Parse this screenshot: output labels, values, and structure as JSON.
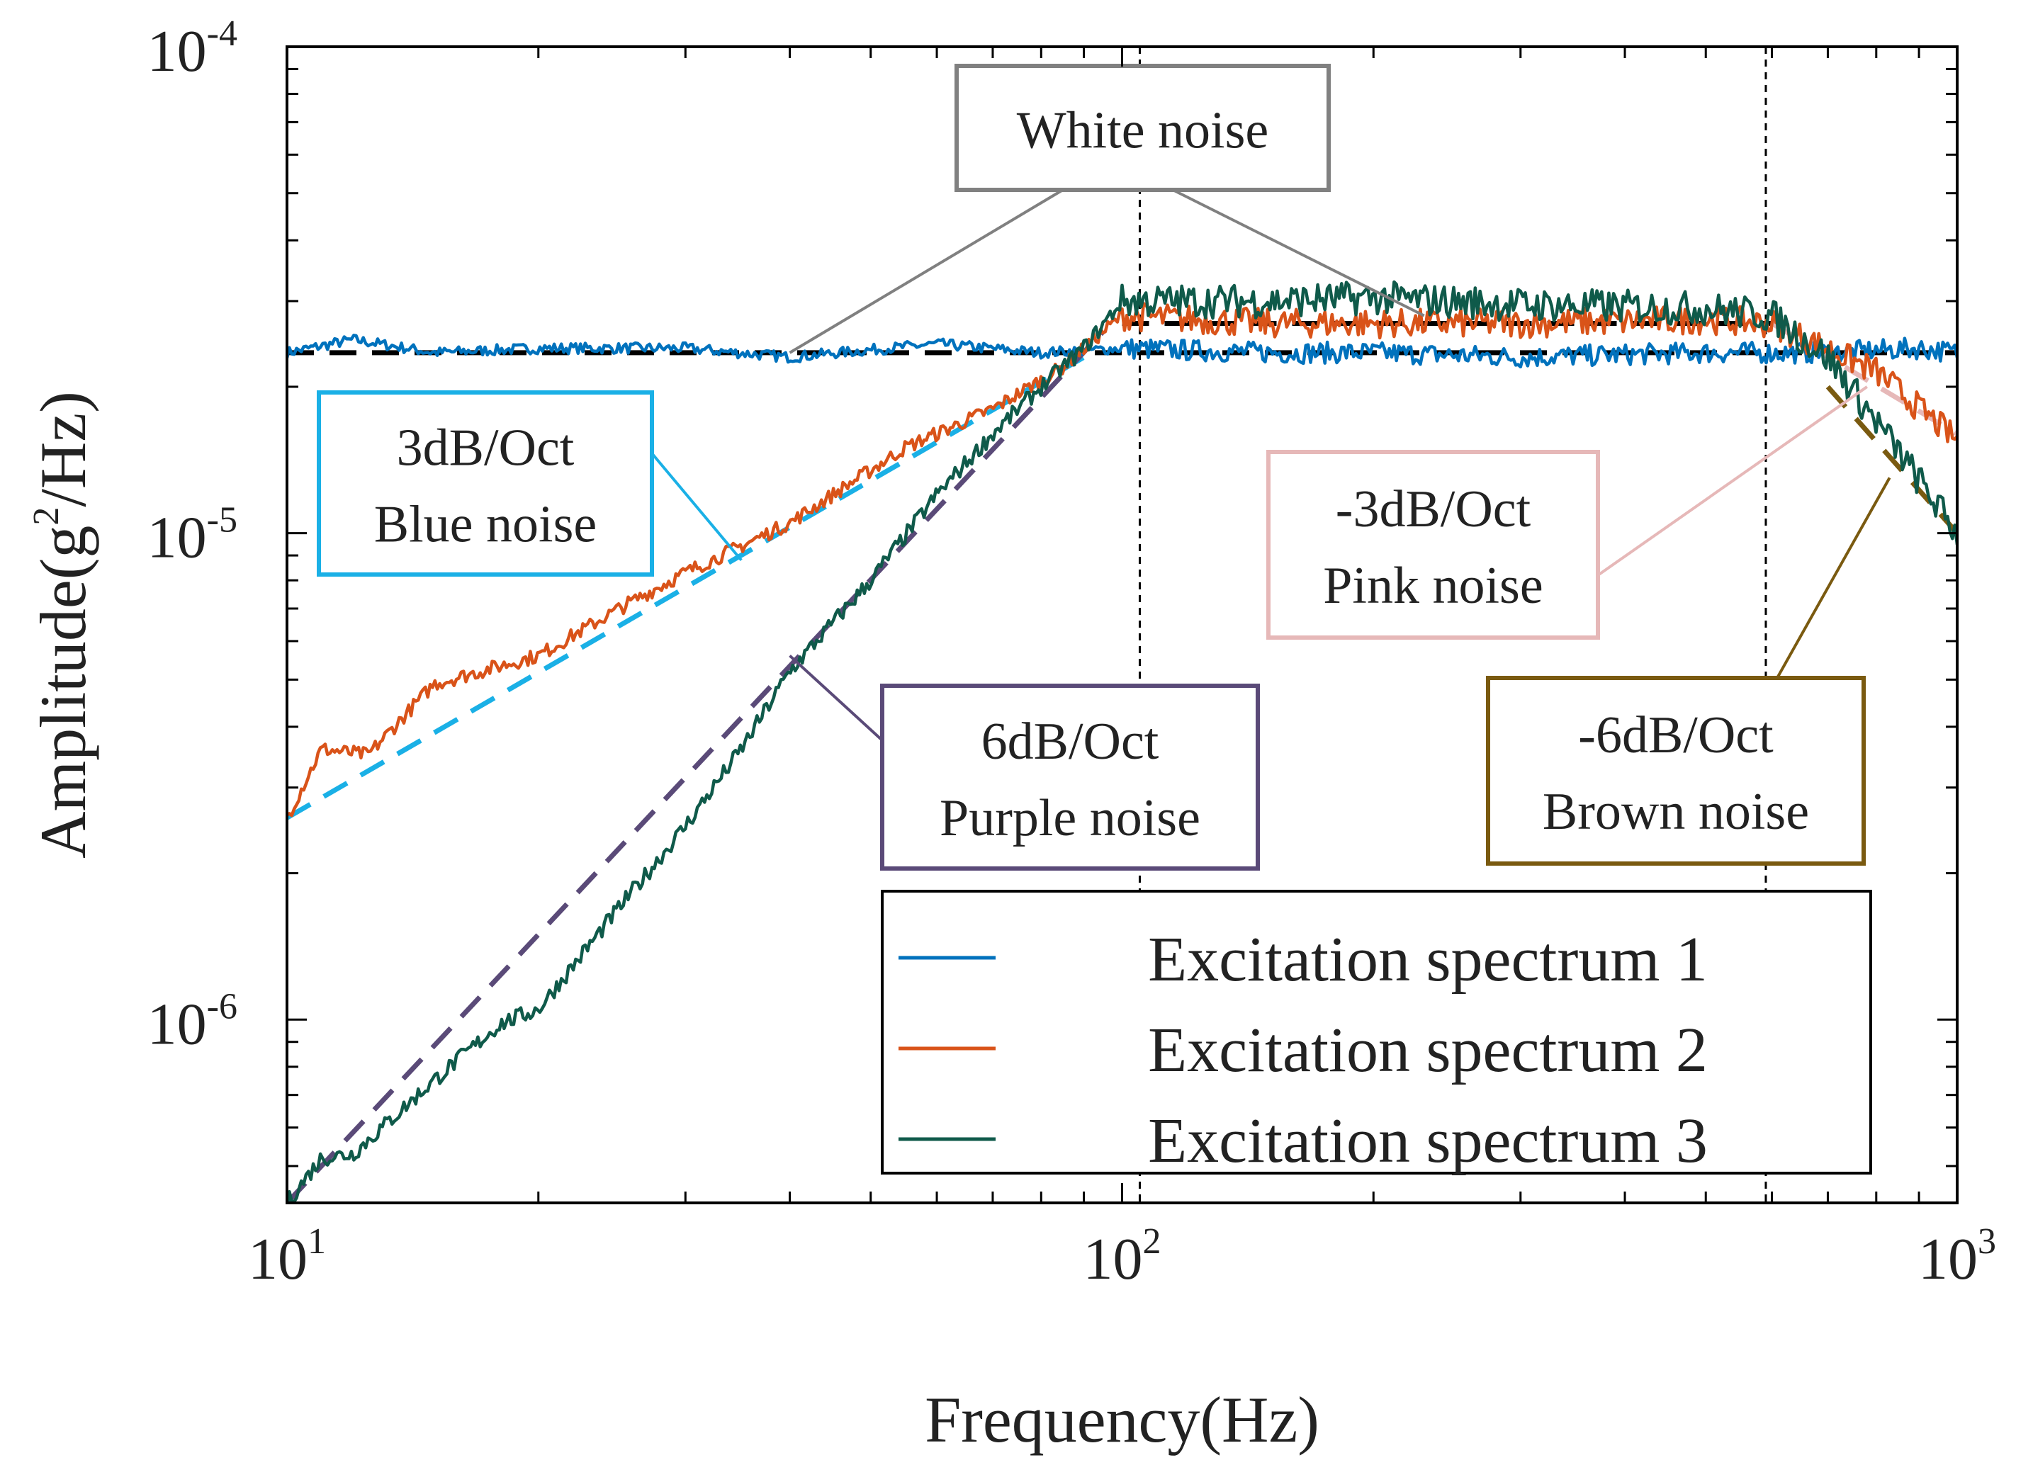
{
  "chart_data": {
    "type": "line",
    "xscale": "log",
    "yscale": "log",
    "xlim": [
      10,
      1000
    ],
    "ylim": [
      4.2e-07,
      0.0001
    ],
    "xlabel": "Frequency(Hz)",
    "ylabel": "Amplitude(g^2/Hz)",
    "ylabel_parts": {
      "main": "Amplitude(g",
      "exp": "2",
      "tail": "/Hz)"
    },
    "x_ticks": [
      {
        "base": "10",
        "exp": "1"
      },
      {
        "base": "10",
        "exp": "2"
      },
      {
        "base": "10",
        "exp": "3"
      }
    ],
    "y_ticks": [
      {
        "value": 1e-06,
        "base": "10",
        "exp": "-6"
      },
      {
        "value": 1e-05,
        "base": "10",
        "exp": "-5"
      },
      {
        "value": 0.0001,
        "base": "10",
        "exp": "-4"
      }
    ],
    "grid": false,
    "legend_position": "bottom-right",
    "series": [
      {
        "name": "Excitation spectrum 1",
        "color": "#0072BD",
        "points": [
          [
            10,
            2.35e-05
          ],
          [
            12,
            2.5e-05
          ],
          [
            15,
            2.35e-05
          ],
          [
            20,
            2.4e-05
          ],
          [
            30,
            2.4e-05
          ],
          [
            40,
            2.3e-05
          ],
          [
            60,
            2.45e-05
          ],
          [
            80,
            2.35e-05
          ],
          [
            100,
            2.4e-05
          ],
          [
            150,
            2.35e-05
          ],
          [
            200,
            2.35e-05
          ],
          [
            300,
            2.3e-05
          ],
          [
            500,
            2.35e-05
          ],
          [
            700,
            2.35e-05
          ],
          [
            900,
            2.4e-05
          ],
          [
            1000,
            2.35e-05
          ]
        ]
      },
      {
        "name": "Excitation spectrum 2",
        "color": "#D95319",
        "points": [
          [
            10,
            2.6e-06
          ],
          [
            11,
            3.6e-06
          ],
          [
            12.5,
            3.5e-06
          ],
          [
            15,
            4.9e-06
          ],
          [
            20,
            5.6e-06
          ],
          [
            25,
            7e-06
          ],
          [
            30,
            8.3e-06
          ],
          [
            40,
            1.05e-05
          ],
          [
            55,
            1.5e-05
          ],
          [
            70,
            1.8e-05
          ],
          [
            85,
            2.2e-05
          ],
          [
            95,
            2.6e-05
          ],
          [
            100,
            2.8e-05
          ],
          [
            150,
            2.7e-05
          ],
          [
            300,
            2.7e-05
          ],
          [
            500,
            2.75e-05
          ],
          [
            600,
            2.7e-05
          ],
          [
            800,
            2.15e-05
          ],
          [
            1000,
            1.55e-05
          ]
        ]
      },
      {
        "name": "Excitation spectrum 3",
        "color": "#0F5A4A",
        "points": [
          [
            10,
            4.2e-07
          ],
          [
            11,
            5.2e-07
          ],
          [
            12,
            5.3e-07
          ],
          [
            15,
            7.5e-07
          ],
          [
            18,
            9.8e-07
          ],
          [
            20,
            1.05e-06
          ],
          [
            25,
            1.7e-06
          ],
          [
            30,
            2.5e-06
          ],
          [
            35,
            3.6e-06
          ],
          [
            40,
            5.2e-06
          ],
          [
            50,
            8e-06
          ],
          [
            60,
            1.2e-05
          ],
          [
            70,
            1.6e-05
          ],
          [
            80,
            2e-05
          ],
          [
            90,
            2.4e-05
          ],
          [
            100,
            3e-05
          ],
          [
            150,
            3e-05
          ],
          [
            200,
            3.05e-05
          ],
          [
            300,
            2.95e-05
          ],
          [
            500,
            2.9e-05
          ],
          [
            600,
            2.8e-05
          ],
          [
            700,
            2.3e-05
          ],
          [
            800,
            1.7e-05
          ],
          [
            1000,
            1e-05
          ]
        ]
      }
    ],
    "references": [
      {
        "label": "White noise",
        "color": "#000000",
        "points": [
          [
            10,
            2.35e-05
          ],
          [
            1000,
            2.35e-05
          ]
        ]
      },
      {
        "label": "White noise",
        "color": "#000000",
        "points": [
          [
            100,
            2.7e-05
          ],
          [
            600,
            2.7e-05
          ]
        ]
      },
      {
        "label": "Blue noise",
        "color": "#1AB0E6",
        "points": [
          [
            10,
            2.6e-06
          ],
          [
            90,
            2.3e-05
          ]
        ]
      },
      {
        "label": "Purple noise",
        "color": "#5A4A78",
        "points": [
          [
            10,
            4.2e-07
          ],
          [
            95,
            2.6e-05
          ]
        ]
      },
      {
        "label": "Pink noise",
        "color": "#E6B8B8",
        "points": [
          [
            600,
            2.7e-05
          ],
          [
            1000,
            1.6e-05
          ]
        ]
      },
      {
        "label": "Brown noise",
        "color": "#7A5A10",
        "points": [
          [
            700,
            2e-05
          ],
          [
            1000,
            1e-05
          ]
        ]
      }
    ],
    "vlines": [
      105,
      590
    ],
    "annotations": [
      {
        "id": "white",
        "lines": [
          "White noise"
        ],
        "color": "#808080",
        "target": [
          [
            40,
            2.35e-05
          ],
          [
            230,
            2.8e-05
          ]
        ]
      },
      {
        "id": "blue",
        "lines": [
          "3dB/Oct",
          "Blue noise"
        ],
        "color": "#1AB0E6",
        "target": [
          [
            35,
            8.8e-06
          ]
        ]
      },
      {
        "id": "purple",
        "lines": [
          "6dB/Oct",
          "Purple noise"
        ],
        "color": "#5A4A78",
        "target": [
          [
            40,
            5.6e-06
          ]
        ]
      },
      {
        "id": "pink",
        "lines": [
          "-3dB/Oct",
          "Pink noise"
        ],
        "color": "#E6B8B8",
        "target": [
          [
            780,
            2e-05
          ]
        ]
      },
      {
        "id": "brown",
        "lines": [
          "-6dB/Oct",
          "Brown noise"
        ],
        "color": "#7A5A10",
        "target": [
          [
            830,
            1.3e-05
          ]
        ]
      }
    ]
  }
}
